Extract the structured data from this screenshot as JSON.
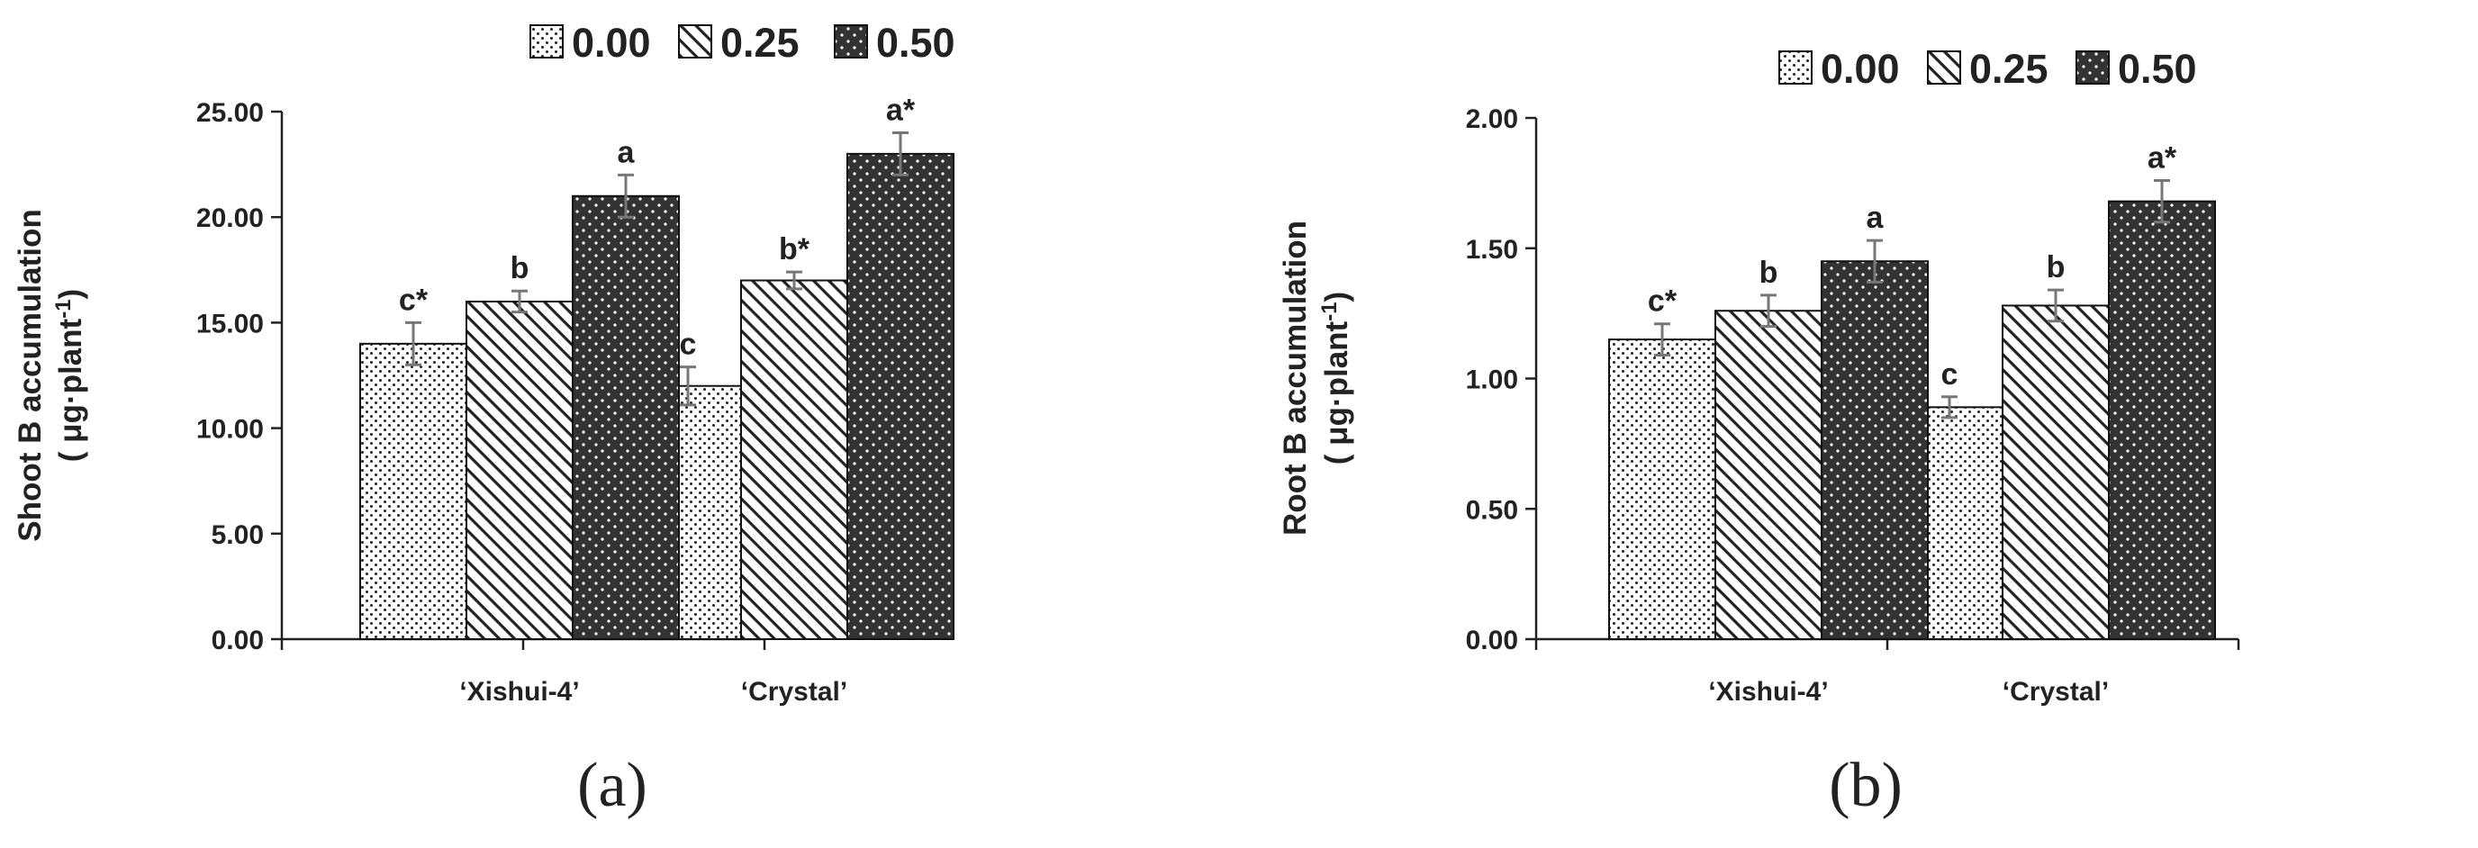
{
  "colors": {
    "bar_stroke": "#111111",
    "axis": "#222222",
    "error_bar": "#777777",
    "pattern_dark": "#333333"
  },
  "pattern_names": [
    "dots-pattern",
    "diagonal-hatch-pattern",
    "dark-dotted-pattern"
  ],
  "chart_data": [
    {
      "type": "bar",
      "panel_label": "(a)",
      "categories": [
        "‘Xishui-4’",
        "‘Crystal’"
      ],
      "ylabel_line1": "Shoot B accumulation",
      "ylabel_line2_prefix": "( μg·plant",
      "ylabel_line2_sup": "-1",
      "ylabel_line2_suffix": ")",
      "ylim": [
        0,
        25
      ],
      "yticks": [
        "0.00",
        "5.00",
        "10.00",
        "15.00",
        "20.00",
        "25.00"
      ],
      "legend_position": "top",
      "grid": false,
      "series": [
        {
          "name": "0.00",
          "values": [
            14.0,
            12.0
          ],
          "errors": [
            1.0,
            0.9
          ],
          "labels": [
            "c*",
            "c"
          ]
        },
        {
          "name": "0.25",
          "values": [
            16.0,
            17.0
          ],
          "errors": [
            0.5,
            0.4
          ],
          "labels": [
            "b",
            "b*"
          ]
        },
        {
          "name": "0.50",
          "values": [
            21.0,
            23.0
          ],
          "errors": [
            1.0,
            1.0
          ],
          "labels": [
            "a",
            "a*"
          ]
        }
      ]
    },
    {
      "type": "bar",
      "panel_label": "(b)",
      "categories": [
        "‘Xishui-4’",
        "‘Crystal’"
      ],
      "ylabel_line1": "Root B accumulation",
      "ylabel_line2_prefix": "( μg·plant",
      "ylabel_line2_sup": "-1",
      "ylabel_line2_suffix": ")",
      "ylim": [
        0,
        2
      ],
      "yticks": [
        "0.00",
        "0.50",
        "1.00",
        "1.50",
        "2.00"
      ],
      "legend_position": "top",
      "grid": false,
      "series": [
        {
          "name": "0.00",
          "values": [
            1.15,
            0.89
          ],
          "errors": [
            0.06,
            0.04
          ],
          "labels": [
            "c*",
            "c"
          ]
        },
        {
          "name": "0.25",
          "values": [
            1.26,
            1.28
          ],
          "errors": [
            0.06,
            0.06
          ],
          "labels": [
            "b",
            "b"
          ]
        },
        {
          "name": "0.50",
          "values": [
            1.45,
            1.68
          ],
          "errors": [
            0.08,
            0.08
          ],
          "labels": [
            "a",
            "a*"
          ]
        }
      ]
    }
  ]
}
